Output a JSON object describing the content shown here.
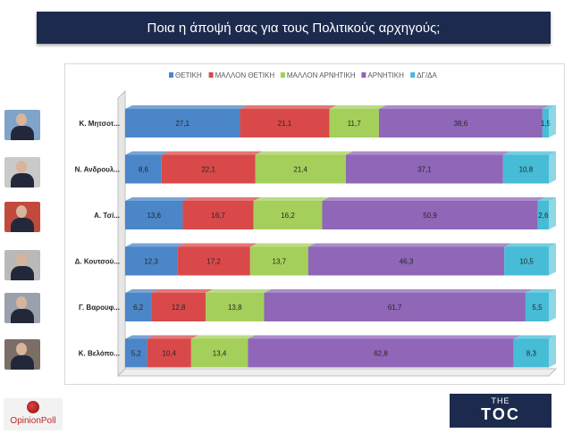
{
  "title": "Ποια η άποψή σας για τους Πολιτικούς αρχηγούς;",
  "chart_data": {
    "type": "bar",
    "orientation": "horizontal",
    "stacked": true,
    "percent": true,
    "categories": [
      "Κ. Μητσοτ...",
      "Ν. Ανδρουλ...",
      "Α. Τσί...",
      "Δ. Κουτσού...",
      "Γ. Βαρουφ...",
      "Κ. Βελόπο..."
    ],
    "series": [
      {
        "name": "ΘΕΤΙΚΗ",
        "color": "#4a86c8",
        "values": [
          27.1,
          8.6,
          13.6,
          12.3,
          6.2,
          5.2
        ],
        "labels": [
          "27,1",
          "8,6",
          "13,6",
          "12,3",
          "6,2",
          "5,2"
        ]
      },
      {
        "name": "ΜΑΛΛΟΝ ΘΕΤΙΚΗ",
        "color": "#d9494a",
        "values": [
          21.1,
          22.1,
          16.7,
          17.2,
          12.8,
          10.4
        ],
        "labels": [
          "21,1",
          "22,1",
          "16,7",
          "17,2",
          "12,8",
          "10,4"
        ]
      },
      {
        "name": "ΜΑΛΛΟΝ ΑΡΝΗΤΙΚΗ",
        "color": "#a4cf5a",
        "values": [
          11.7,
          21.4,
          16.2,
          13.7,
          13.8,
          13.4
        ],
        "labels": [
          "11,7",
          "21,4",
          "16,2",
          "13,7",
          "13,8",
          "13,4"
        ]
      },
      {
        "name": "ΑΡΝΗΤΙΚΗ",
        "color": "#8f66b8",
        "values": [
          38.6,
          37.1,
          50.9,
          46.3,
          61.7,
          62.8
        ],
        "labels": [
          "38,6",
          "37,1",
          "50,9",
          "46,3",
          "61,7",
          "62,8"
        ]
      },
      {
        "name": "ΔΓ/ΔΑ",
        "color": "#46bcd6",
        "values": [
          1.5,
          10.8,
          2.6,
          10.5,
          5.5,
          8.3
        ],
        "labels": [
          "1,5",
          "10,8",
          "2,6",
          "10,5",
          "5,5",
          "8,3"
        ]
      }
    ],
    "legend_position": "top",
    "grid": false
  },
  "icons": [
    "leader-photo",
    "leader-photo",
    "leader-photo",
    "leader-photo",
    "leader-photo",
    "leader-photo"
  ],
  "logos": {
    "left": "OpinionPoll",
    "right_small": "THE",
    "right_big": "TOC"
  }
}
